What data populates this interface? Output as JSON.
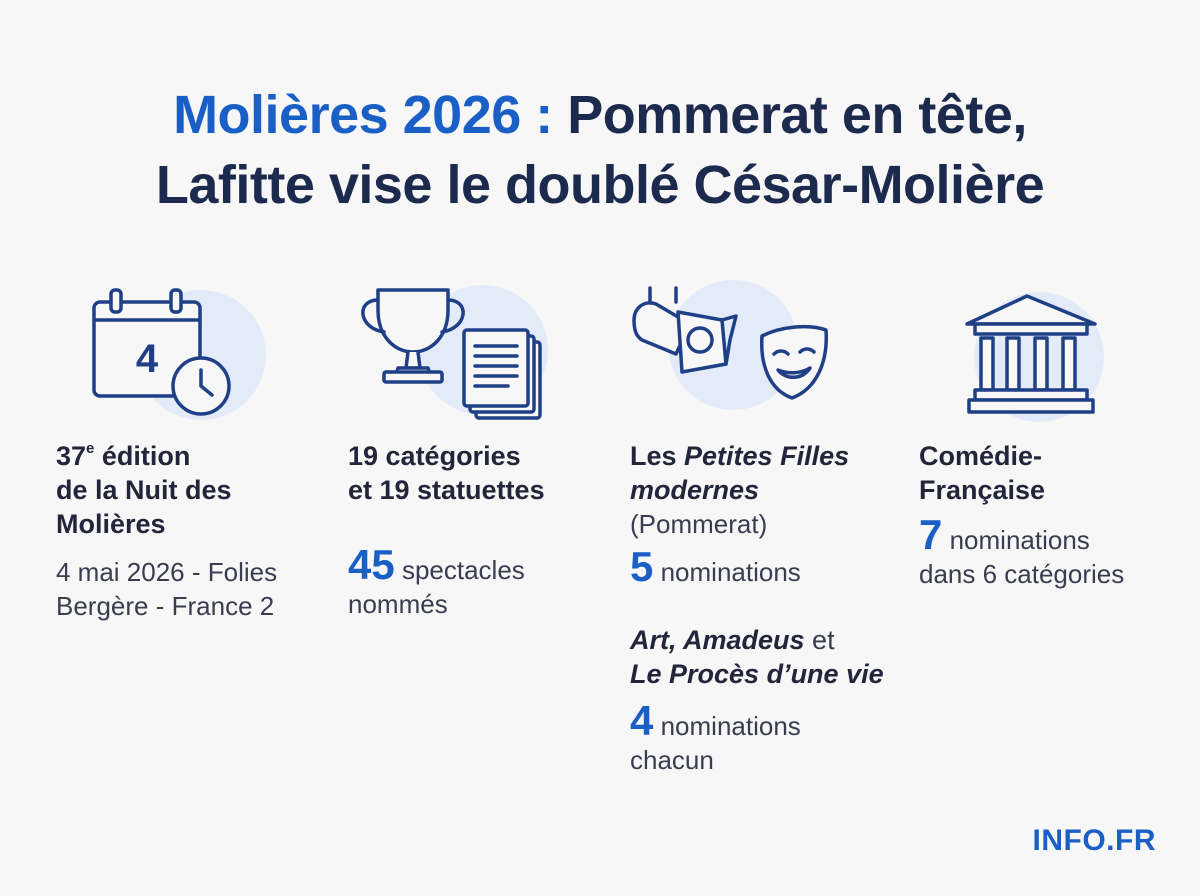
{
  "title": {
    "accent": "Molières 2026 :",
    "rest": " Pommerat en tête,",
    "line2": "Lafitte vise le doublé César-Molière"
  },
  "columns": [
    {
      "icon": "calendar-clock-icon",
      "calendar_day": "4",
      "heading_num": "37",
      "heading_sup": "e",
      "heading_rest1": " édition",
      "heading_line2": "de la Nuit des",
      "heading_line3": "Molières",
      "detail_line1": "4 mai 2026 - Folies",
      "detail_line2": "Bergère - France 2"
    },
    {
      "icon": "trophy-documents-icon",
      "heading_line1": "19 catégories",
      "heading_line2": "et 19 statuettes",
      "stat_value": "45",
      "stat_text1": " spectacles",
      "stat_text2": "nommés"
    },
    {
      "icon": "spotlight-theater-mask-icon",
      "heading_prefix": "Les ",
      "heading_italic1": "Petites Filles",
      "heading_italic2": "modernes",
      "heading_author": "(Pommerat)",
      "stat_value": "5",
      "stat_text": " nominations",
      "second_italic1": "Art, Amadeus",
      "second_plain": " et",
      "second_italic2": "Le Procès d’une vie",
      "second_stat_value": "4",
      "second_stat_text1": " nominations",
      "second_stat_text2": "chacun"
    },
    {
      "icon": "classical-building-icon",
      "heading_line1": "Comédie-",
      "heading_line2": "Française",
      "stat_value": "7",
      "stat_text1": " nominations",
      "stat_text2": "dans 6 catégories"
    }
  ],
  "brand": "INFO.FR",
  "colors": {
    "accent": "#1a5fc6",
    "dark": "#1c2a4d",
    "background": "#f7f7f8",
    "icon_bg": "#e4ebf8"
  }
}
